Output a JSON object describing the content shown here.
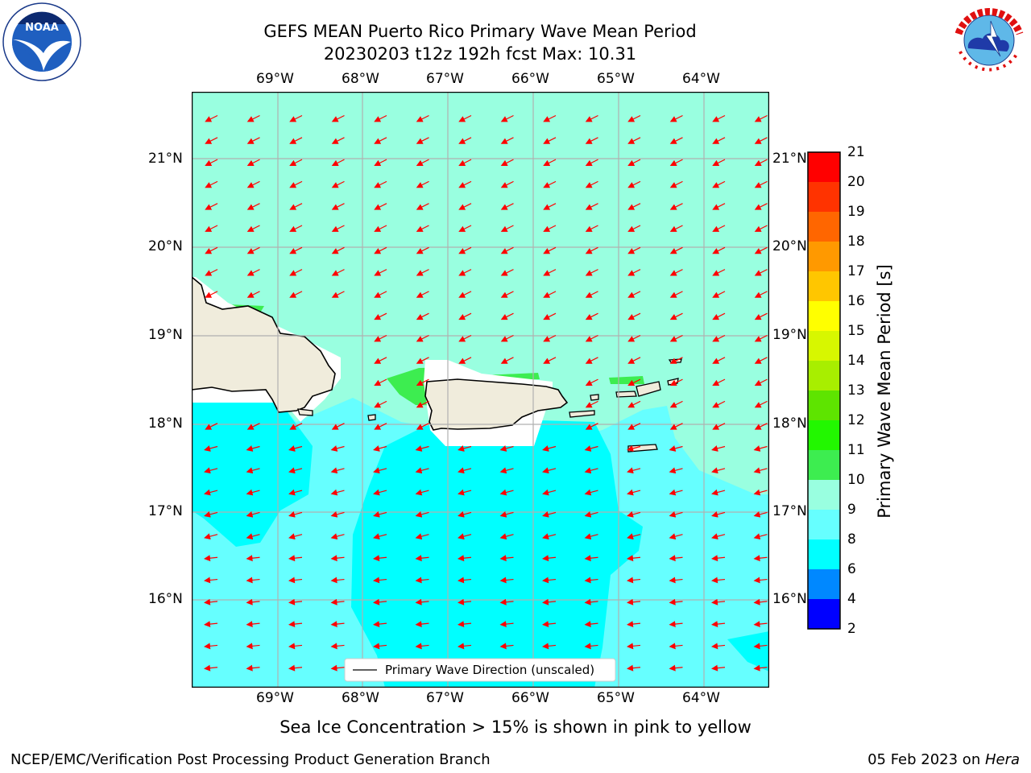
{
  "header": {
    "title_line1": "GEFS MEAN Puerto Rico Primary Wave Mean Period",
    "title_line2": "20230203 t12z 192h fcst   Max: 10.31"
  },
  "logos": {
    "left": {
      "name": "noaa-logo",
      "text": "NOAA"
    },
    "right": {
      "name": "nws-logo",
      "text": "NATIONAL WEATHER SERVICE"
    }
  },
  "map": {
    "lon_labels": [
      "69°W",
      "68°W",
      "67°W",
      "66°W",
      "65°W",
      "64°W"
    ],
    "lat_labels": [
      "21°N",
      "20°N",
      "19°N",
      "18°N",
      "17°N",
      "16°N"
    ],
    "legend_label": "Primary Wave Direction (unscaled)",
    "arrow_color": "#ff0000",
    "land_color": "#f0ecdc"
  },
  "colorbar": {
    "label": "Primary Wave Mean Period [s]",
    "ticks": [
      "21",
      "20",
      "19",
      "18",
      "17",
      "16",
      "15",
      "14",
      "13",
      "12",
      "11",
      "10",
      "9",
      "8",
      "6",
      "4",
      "2"
    ],
    "colors": [
      "#ff0000",
      "#ff3300",
      "#ff6600",
      "#ff9900",
      "#ffc600",
      "#ffff00",
      "#d7f700",
      "#a8ee00",
      "#5ee400",
      "#22f700",
      "#3ded50",
      "#99ffe0",
      "#66ffff",
      "#00ffff",
      "#0088ff",
      "#0000ff"
    ]
  },
  "notes": {
    "sea_ice": "Sea Ice Concentration > 15% is shown in pink to yellow"
  },
  "footer": {
    "left": "NCEP/EMC/Verification Post Processing Product Generation Branch",
    "right_prefix": "05 Feb 2023 on ",
    "right_host": "Hera"
  }
}
